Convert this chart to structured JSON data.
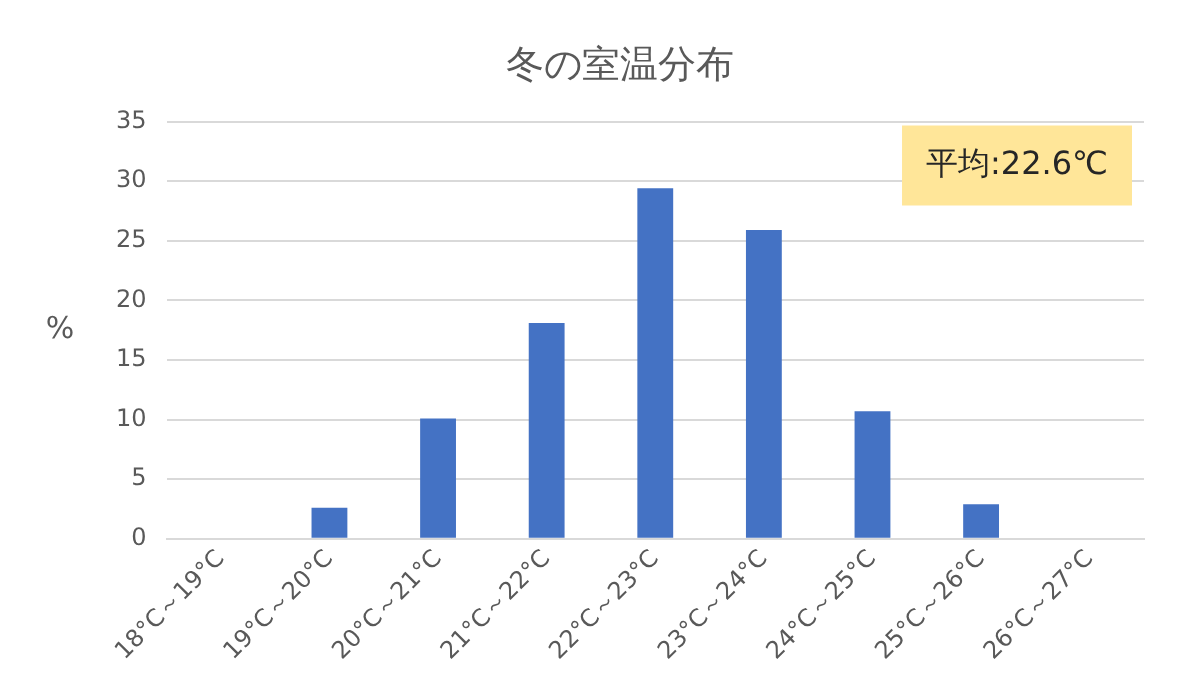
{
  "chart_data": {
    "type": "bar",
    "title": "冬の室温分布",
    "ylabel": "%",
    "categories": [
      "18°C～19°C",
      "19°C～20°C",
      "20°C～21°C",
      "21°C～22°C",
      "22°C～23°C",
      "23°C～24°C",
      "24°C～25°C",
      "25°C～26°C",
      "26°C～27°C"
    ],
    "values": [
      0,
      2.6,
      10.1,
      18.1,
      29.4,
      25.9,
      10.7,
      2.9,
      0
    ],
    "color": "#4472c4",
    "ylim": [
      0,
      35
    ],
    "yticks": [
      0,
      5,
      10,
      15,
      20,
      25,
      30,
      35
    ],
    "grid": "y",
    "legend": false,
    "annotations": [
      "平均:22.6℃"
    ]
  }
}
